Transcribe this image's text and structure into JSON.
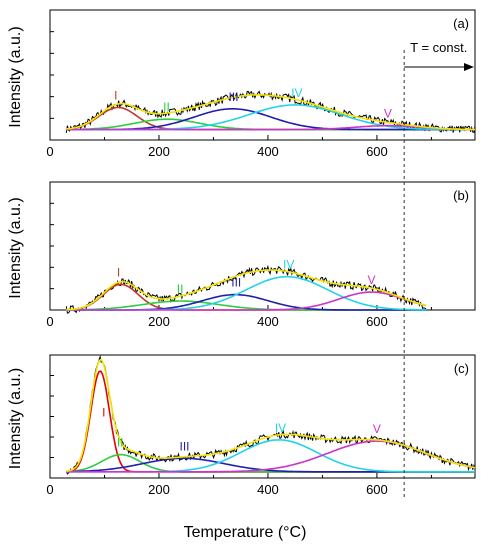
{
  "figure": {
    "xlabel": "Temperature (°C)",
    "ylabel": "Intensity (a.u.)",
    "annotation": "T = const."
  },
  "chart_data": [
    {
      "type": "line",
      "panel_label": "(a)",
      "xlabel": "",
      "ylabel": "Intensity (a.u.)",
      "xlim": [
        0,
        780
      ],
      "ylim": [
        0,
        1.0
      ],
      "xticks": [
        "0",
        "200",
        "400",
        "600"
      ],
      "xtick_values": [
        0,
        200,
        400,
        600
      ],
      "grid": false,
      "isotherm_x": 650,
      "annotation": "T = const.",
      "total_envelope": {
        "baseline": 0.08,
        "extends_to": 780
      },
      "peaks": [
        {
          "label": "I",
          "color": "#c0392b",
          "center": 125,
          "width": 35,
          "height": 0.17
        },
        {
          "label": "II",
          "color": "#2ecc40",
          "center": 215,
          "width": 60,
          "height": 0.08
        },
        {
          "label": "III",
          "color": "#1f1fb0",
          "center": 335,
          "width": 70,
          "height": 0.16
        },
        {
          "label": "IV",
          "color": "#22d3e6",
          "center": 450,
          "width": 85,
          "height": 0.19
        },
        {
          "label": "V",
          "color": "#cc33cc",
          "center": 620,
          "width": 60,
          "height": 0.03
        }
      ]
    },
    {
      "type": "line",
      "panel_label": "(b)",
      "xlabel": "",
      "ylabel": "Intensity (a.u.)",
      "xlim": [
        0,
        780
      ],
      "ylim": [
        0,
        1.0
      ],
      "xticks": [
        "0",
        "200",
        "400",
        "600"
      ],
      "xtick_values": [
        0,
        200,
        400,
        600
      ],
      "grid": false,
      "isotherm_x": 650,
      "total_envelope": {
        "baseline": 0.0,
        "extends_to": 690
      },
      "peaks": [
        {
          "label": "I",
          "color": "#c0392b",
          "center": 130,
          "width": 32,
          "height": 0.2
        },
        {
          "label": "II",
          "color": "#2ecc40",
          "center": 240,
          "width": 70,
          "height": 0.07
        },
        {
          "label": "III",
          "color": "#1f1fb0",
          "center": 340,
          "width": 60,
          "height": 0.12
        },
        {
          "label": "IV",
          "color": "#22d3e6",
          "center": 435,
          "width": 75,
          "height": 0.26
        },
        {
          "label": "V",
          "color": "#cc33cc",
          "center": 590,
          "width": 60,
          "height": 0.14
        }
      ]
    },
    {
      "type": "line",
      "panel_label": "(c)",
      "xlabel": "Temperature (°C)",
      "ylabel": "Intensity (a.u.)",
      "xlim": [
        0,
        780
      ],
      "ylim": [
        0,
        1.0
      ],
      "xticks": [
        "0",
        "200",
        "400",
        "600"
      ],
      "xtick_values": [
        0,
        200,
        400,
        600
      ],
      "grid": false,
      "isotherm_x": 650,
      "total_envelope": {
        "baseline": 0.05,
        "extends_to": 780
      },
      "peaks": [
        {
          "label": "I",
          "color": "#e60000",
          "center": 92,
          "width": 17,
          "height": 0.82
        },
        {
          "label": "II",
          "color": "#2ecc40",
          "center": 130,
          "width": 35,
          "height": 0.14
        },
        {
          "label": "III",
          "color": "#1f1fb0",
          "center": 245,
          "width": 75,
          "height": 0.11
        },
        {
          "label": "IV",
          "color": "#22d3e6",
          "center": 420,
          "width": 70,
          "height": 0.26
        },
        {
          "label": "V",
          "color": "#cc33cc",
          "center": 600,
          "width": 90,
          "height": 0.25
        }
      ]
    }
  ]
}
